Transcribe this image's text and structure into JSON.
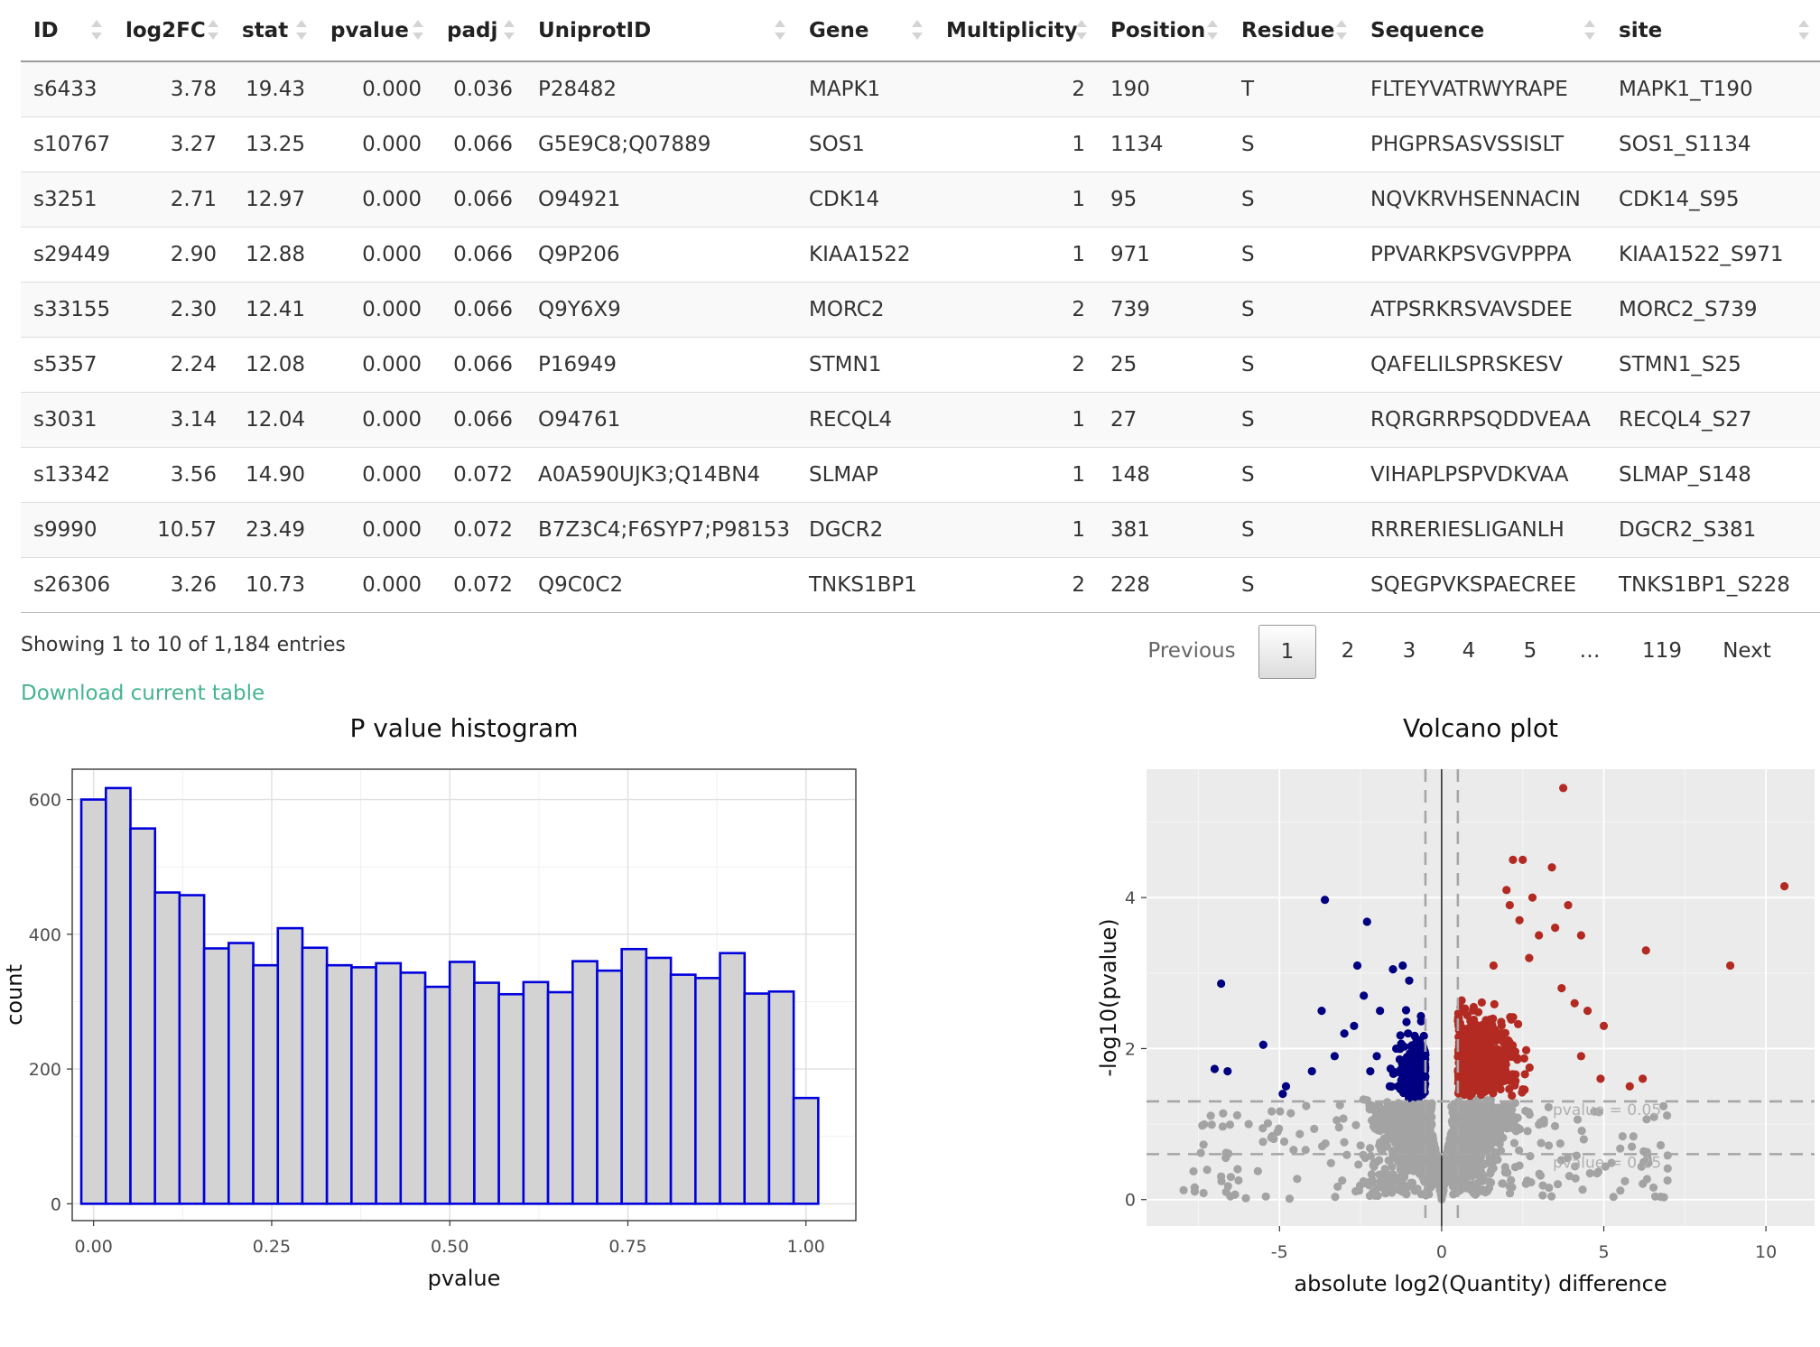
{
  "table": {
    "columns": [
      "ID",
      "log2FC",
      "stat",
      "pvalue",
      "padj",
      "UniprotID",
      "Gene",
      "Multiplicity",
      "Position",
      "Residue",
      "Sequence",
      "site"
    ],
    "rows": [
      [
        "s6433",
        "3.78",
        "19.43",
        "0.000",
        "0.036",
        "P28482",
        "MAPK1",
        "2",
        "190",
        "T",
        "FLTEYVATRWYRAPE",
        "MAPK1_T190"
      ],
      [
        "s10767",
        "3.27",
        "13.25",
        "0.000",
        "0.066",
        "G5E9C8;Q07889",
        "SOS1",
        "1",
        "1134",
        "S",
        "PHGPRSASVSSISLT",
        "SOS1_S1134"
      ],
      [
        "s3251",
        "2.71",
        "12.97",
        "0.000",
        "0.066",
        "O94921",
        "CDK14",
        "1",
        "95",
        "S",
        "NQVKRVHSENNACIN",
        "CDK14_S95"
      ],
      [
        "s29449",
        "2.90",
        "12.88",
        "0.000",
        "0.066",
        "Q9P206",
        "KIAA1522",
        "1",
        "971",
        "S",
        "PPVARKPSVGVPPPA",
        "KIAA1522_S971"
      ],
      [
        "s33155",
        "2.30",
        "12.41",
        "0.000",
        "0.066",
        "Q9Y6X9",
        "MORC2",
        "2",
        "739",
        "S",
        "ATPSRKRSVAVSDEE",
        "MORC2_S739"
      ],
      [
        "s5357",
        "2.24",
        "12.08",
        "0.000",
        "0.066",
        "P16949",
        "STMN1",
        "2",
        "25",
        "S",
        "QAFELILSPRSKESV",
        "STMN1_S25"
      ],
      [
        "s3031",
        "3.14",
        "12.04",
        "0.000",
        "0.066",
        "O94761",
        "RECQL4",
        "1",
        "27",
        "S",
        "RQRGRRPSQDDVEAA",
        "RECQL4_S27"
      ],
      [
        "s13342",
        "3.56",
        "14.90",
        "0.000",
        "0.072",
        "A0A590UJK3;Q14BN4",
        "SLMAP",
        "1",
        "148",
        "S",
        "VIHAPLPSPVDKVAA",
        "SLMAP_S148"
      ],
      [
        "s9990",
        "10.57",
        "23.49",
        "0.000",
        "0.072",
        "B7Z3C4;F6SYP7;P98153",
        "DGCR2",
        "1",
        "381",
        "S",
        "RRRERIESLIGANLH",
        "DGCR2_S381"
      ],
      [
        "s26306",
        "3.26",
        "10.73",
        "0.000",
        "0.072",
        "Q9C0C2",
        "TNKS1BP1",
        "2",
        "228",
        "S",
        "SQEGPVKSPAECREE",
        "TNKS1BP1_S228"
      ]
    ]
  },
  "info": "Showing 1 to 10 of 1,184 entries",
  "download_label": "Download current table",
  "pagination": {
    "previous": "Previous",
    "pages": [
      "1",
      "2",
      "3",
      "4",
      "5",
      "…",
      "119"
    ],
    "current": "1",
    "next": "Next"
  },
  "colors": {
    "accent_link": "#45b48f",
    "hist_fill": "#d3d3d3",
    "hist_border": "#0000dd",
    "volcano_up": "#b22a22",
    "volcano_down": "#000080",
    "volcano_ns": "#a3a3a3",
    "panel_bg": "#ebebeb"
  },
  "chart_data": [
    {
      "type": "bar",
      "title": "P value histogram",
      "xlabel": "pvalue",
      "ylabel": "count",
      "x_ticks": [
        "0.00",
        "0.25",
        "0.50",
        "0.75",
        "1.00"
      ],
      "y_ticks": [
        "0",
        "200",
        "400",
        "600"
      ],
      "xlim": [
        -0.03,
        1.07
      ],
      "ylim": [
        -25,
        645
      ],
      "bin_width": 0.0345,
      "bin_centers": [
        0.0,
        0.0345,
        0.069,
        0.1034,
        0.1379,
        0.1724,
        0.2069,
        0.2414,
        0.2759,
        0.3103,
        0.3448,
        0.3793,
        0.4138,
        0.4483,
        0.4828,
        0.5172,
        0.5517,
        0.5862,
        0.6207,
        0.6552,
        0.6897,
        0.7241,
        0.7586,
        0.7931,
        0.8276,
        0.8621,
        0.8966,
        0.931,
        0.9655,
        1.0
      ],
      "values": [
        600,
        617,
        557,
        462,
        458,
        379,
        387,
        354,
        409,
        380,
        354,
        351,
        357,
        343,
        322,
        359,
        328,
        311,
        329,
        314,
        360,
        346,
        378,
        365,
        340,
        335,
        372,
        312,
        315,
        157
      ],
      "grid": true
    },
    {
      "type": "scatter",
      "title": "Volcano plot",
      "xlabel": "absolute log2(Quantity) difference",
      "ylabel": "-log10(pvalue)",
      "x_ticks": [
        "-5",
        "0",
        "5",
        "10"
      ],
      "y_ticks": [
        "0",
        "2",
        "4"
      ],
      "xlim": [
        -9.1,
        11.5
      ],
      "ylim": [
        -0.35,
        5.7
      ],
      "vlines": [
        -0.5,
        0.5
      ],
      "zero_line": 0,
      "hlines": [
        {
          "y": 1.301,
          "label": "pvalue = 0.05"
        },
        {
          "y": 0.602,
          "label": "pvalue = 0.25"
        }
      ],
      "series": [
        {
          "color_key": "volcano_up",
          "points": [
            [
              3.75,
              5.45
            ],
            [
              10.57,
              4.15
            ],
            [
              2.2,
              4.5
            ],
            [
              2.5,
              4.5
            ],
            [
              3.4,
              4.4
            ],
            [
              2.0,
              4.1
            ],
            [
              3.5,
              3.6
            ],
            [
              4.3,
              3.5
            ],
            [
              6.3,
              3.3
            ],
            [
              3.0,
              3.5
            ],
            [
              2.7,
              3.2
            ],
            [
              8.9,
              3.1
            ],
            [
              4.5,
              2.5
            ],
            [
              5.0,
              2.3
            ],
            [
              4.1,
              2.6
            ],
            [
              4.9,
              1.6
            ],
            [
              6.2,
              1.6
            ],
            [
              5.8,
              1.5
            ],
            [
              4.3,
              1.9
            ],
            [
              3.7,
              2.8
            ],
            [
              3.9,
              3.9
            ],
            [
              2.4,
              3.7
            ],
            [
              1.6,
              3.1
            ],
            [
              2.8,
              4.0
            ],
            [
              2.1,
              3.9
            ]
          ]
        },
        {
          "color_key": "volcano_down",
          "points": [
            [
              -3.6,
              3.97
            ],
            [
              -2.3,
              3.68
            ],
            [
              -6.8,
              2.86
            ],
            [
              -2.6,
              3.1
            ],
            [
              -1.5,
              3.05
            ],
            [
              -3.7,
              2.5
            ],
            [
              -1.2,
              3.1
            ],
            [
              -2.4,
              2.7
            ],
            [
              -5.5,
              2.05
            ],
            [
              -7.0,
              1.73
            ],
            [
              -6.6,
              1.7
            ],
            [
              -4.8,
              1.5
            ],
            [
              -4.9,
              1.4
            ],
            [
              -3.0,
              2.2
            ],
            [
              -4.0,
              1.7
            ],
            [
              -3.3,
              1.9
            ],
            [
              -2.7,
              2.3
            ],
            [
              -1.9,
              2.5
            ],
            [
              -2.0,
              1.9
            ],
            [
              -1.0,
              2.9
            ],
            [
              -1.4,
              2.0
            ],
            [
              -2.2,
              1.7
            ],
            [
              -1.6,
              1.5
            ]
          ]
        }
      ],
      "grid": true
    }
  ]
}
